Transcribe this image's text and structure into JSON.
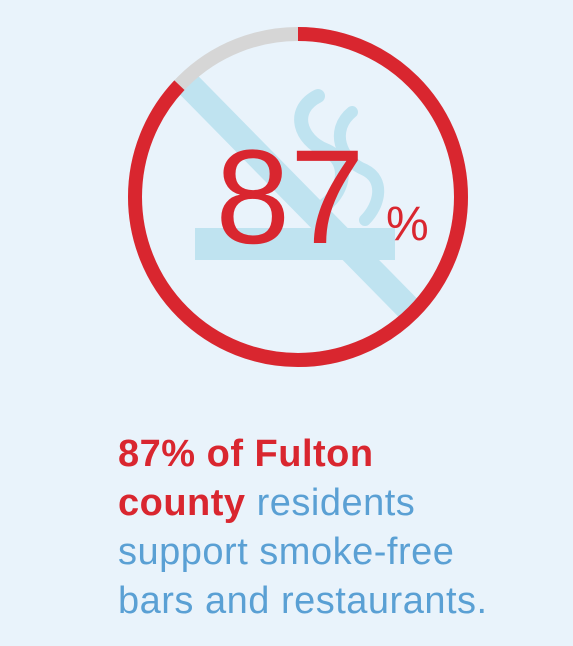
{
  "infographic": {
    "percent_value": 87,
    "percent_number": "87",
    "percent_sign": "%",
    "colors": {
      "accent_red": "#d9262f",
      "track_gray": "#d6d6d6",
      "icon_light_blue": "#bfe3f0",
      "text_blue": "#5aa0d4",
      "background": "#e9f3fb"
    },
    "headline_bold_1": "87% of Fulton",
    "headline_bold_2": "county",
    "headline_rest_1": " residents",
    "headline_rest_2": "support smoke-free",
    "headline_rest_3": "bars and restaurants."
  }
}
